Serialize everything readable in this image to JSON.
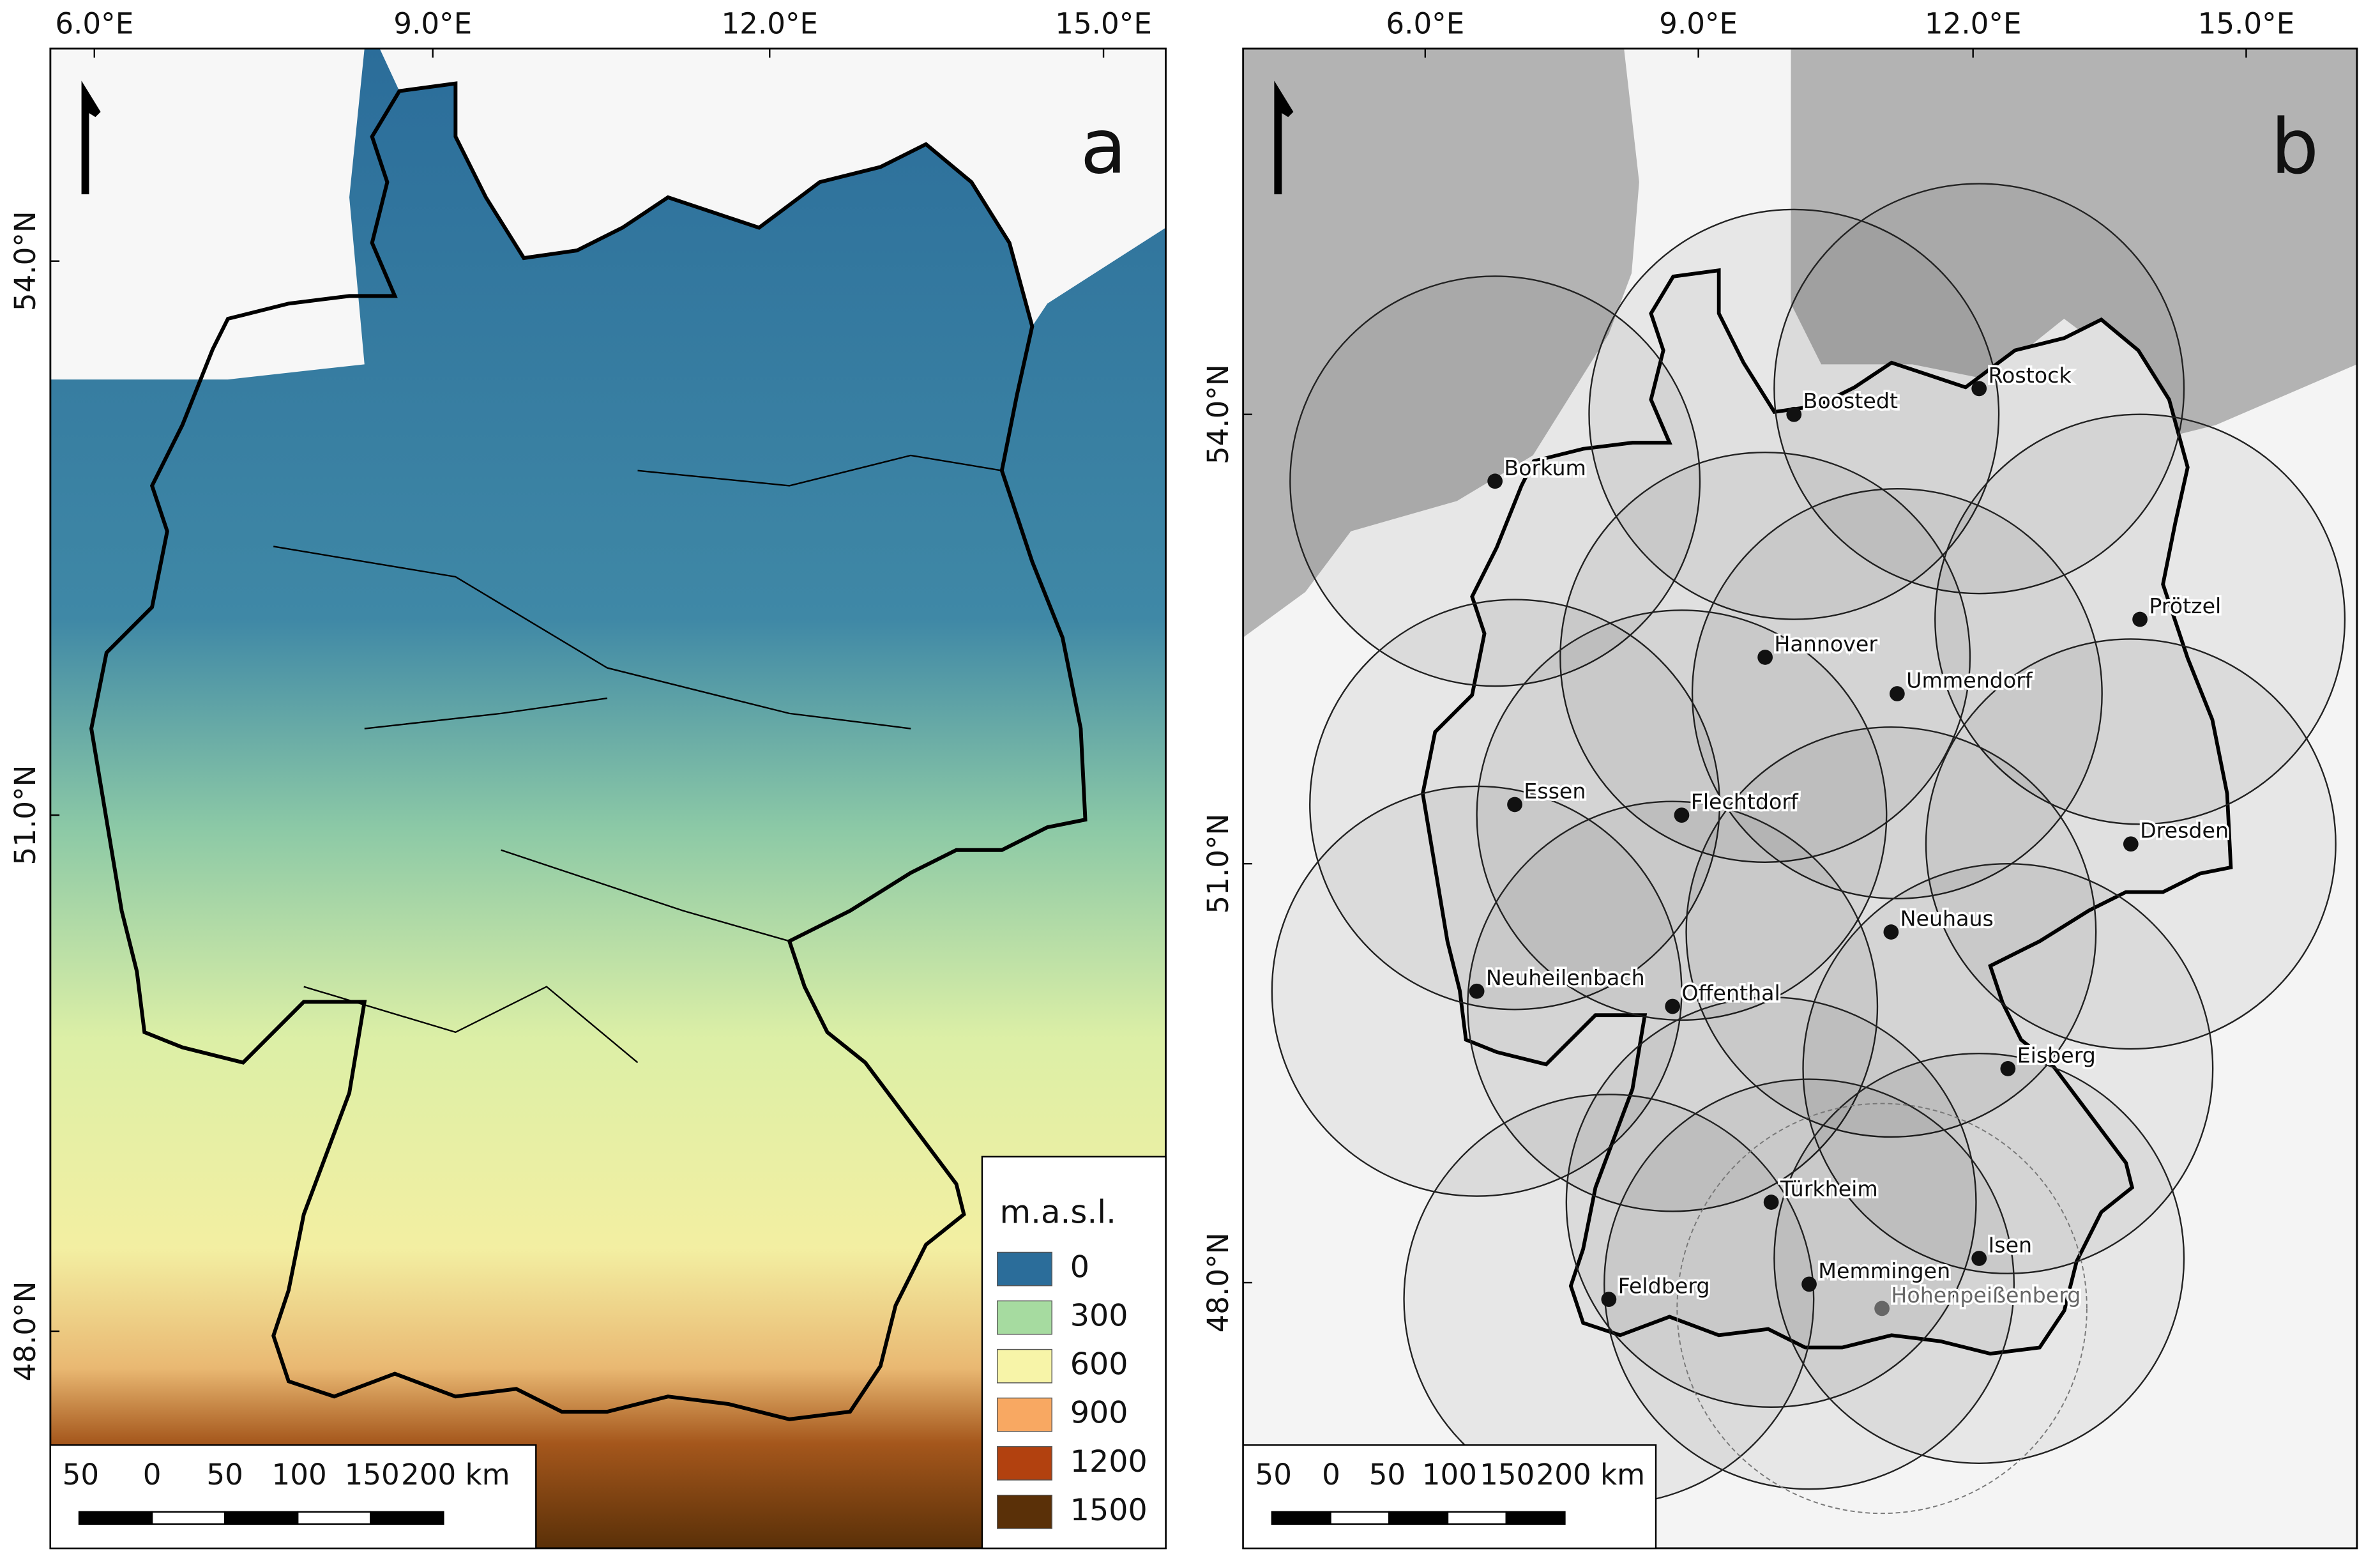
{
  "panels": [
    {
      "label": "a",
      "lon_ticks": [
        "6.0°E",
        "9.0°E",
        "12.0°E",
        "15.0°E"
      ],
      "lat_ticks": [
        "54.0°N",
        "51.0°N",
        "48.0°N"
      ],
      "legend": {
        "title": "m.a.s.l.",
        "items": [
          {
            "label": "0",
            "color": "#2b6d9a"
          },
          {
            "label": "300",
            "color": "#a6dba0"
          },
          {
            "label": "600",
            "color": "#f7f4a8"
          },
          {
            "label": "900",
            "color": "#f8a862"
          },
          {
            "label": "1200",
            "color": "#b2410f"
          },
          {
            "label": "1500",
            "color": "#5a3008"
          }
        ]
      },
      "scale_bar": [
        "50",
        "0",
        "50",
        "100",
        "150",
        "200 km"
      ]
    },
    {
      "label": "b",
      "lon_ticks": [
        "6.0°E",
        "9.0°E",
        "12.0°E",
        "15.0°E"
      ],
      "lat_ticks": [
        "54.0°N",
        "51.0°N",
        "48.0°N"
      ],
      "stations": [
        {
          "name": "Borkum",
          "color": "#111111"
        },
        {
          "name": "Boostedt",
          "color": "#111111"
        },
        {
          "name": "Rostock",
          "color": "#111111"
        },
        {
          "name": "Prötzel",
          "color": "#111111"
        },
        {
          "name": "Hannover",
          "color": "#111111"
        },
        {
          "name": "Ummendorf",
          "color": "#111111"
        },
        {
          "name": "Essen",
          "color": "#111111"
        },
        {
          "name": "Flechtdorf",
          "color": "#111111"
        },
        {
          "name": "Dresden",
          "color": "#111111"
        },
        {
          "name": "Neuhaus",
          "color": "#111111"
        },
        {
          "name": "Neuheilenbach",
          "color": "#111111"
        },
        {
          "name": "Offenthal",
          "color": "#111111"
        },
        {
          "name": "Eisberg",
          "color": "#111111"
        },
        {
          "name": "Türkheim",
          "color": "#111111"
        },
        {
          "name": "Isen",
          "color": "#111111"
        },
        {
          "name": "Memmingen",
          "color": "#111111"
        },
        {
          "name": "Feldberg",
          "color": "#111111"
        },
        {
          "name": "Hohenpeißenberg",
          "color": "#666666"
        }
      ],
      "scale_bar": [
        "50",
        "0",
        "50",
        "100",
        "150",
        "200 km"
      ]
    }
  ]
}
